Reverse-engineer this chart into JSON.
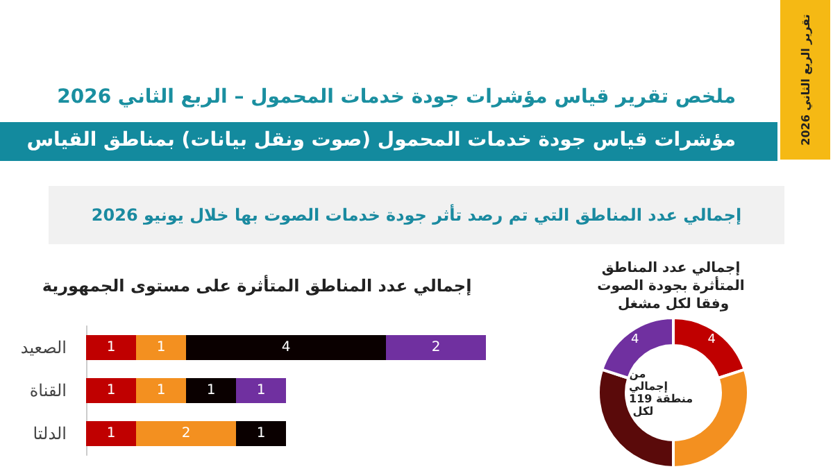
{
  "chart_data": [
    {
      "type": "other",
      "title": "ملخص تقرير قياس مؤشرات جودة خدمات المحمول – الربع الثاني 2026",
      "subtitle": "مؤشرات قياس جودة خدمات المحمول (صوت ونقل بيانات)  بمناطق القياس",
      "annotations": [
        "تقرير الربع الثاني 2026",
        "إجمالي عدد المناطق التي تم رصد تأثر جودة خدمات الصوت بها خلال يونيو  2026"
      ]
    },
    {
      "type": "bar",
      "orientation": "horizontal",
      "stacked": true,
      "data_labels": true,
      "title": "إجمالي عدد المناطق المتأثرة على مستوى الجمهورية",
      "categories": [
        "الصعيد",
        "القناة",
        "الدلتا"
      ],
      "series": [
        {
          "color": "#c00000",
          "values": [
            1,
            1,
            1
          ]
        },
        {
          "color": "#f39020",
          "values": [
            1,
            1,
            2
          ]
        },
        {
          "color": "#0a0000",
          "values": [
            4,
            1,
            1
          ]
        },
        {
          "color": "#7030a0",
          "values": [
            2,
            1,
            null
          ]
        }
      ]
    },
    {
      "type": "donut",
      "title": "إجمالي عدد المناطق المتأثرة بجودة الصوت وفقا لكل مشغل",
      "categories": [
        null,
        null,
        null,
        null
      ],
      "values": [
        4,
        6,
        6,
        4
      ],
      "value_labels": [
        "4",
        null,
        null,
        "4"
      ],
      "colors": [
        "#c00000",
        "#f39020",
        "#5a0a0a",
        "#7030a0"
      ],
      "annotations": [
        "من إجمالي 119 منطقة لكل"
      ]
    }
  ]
}
